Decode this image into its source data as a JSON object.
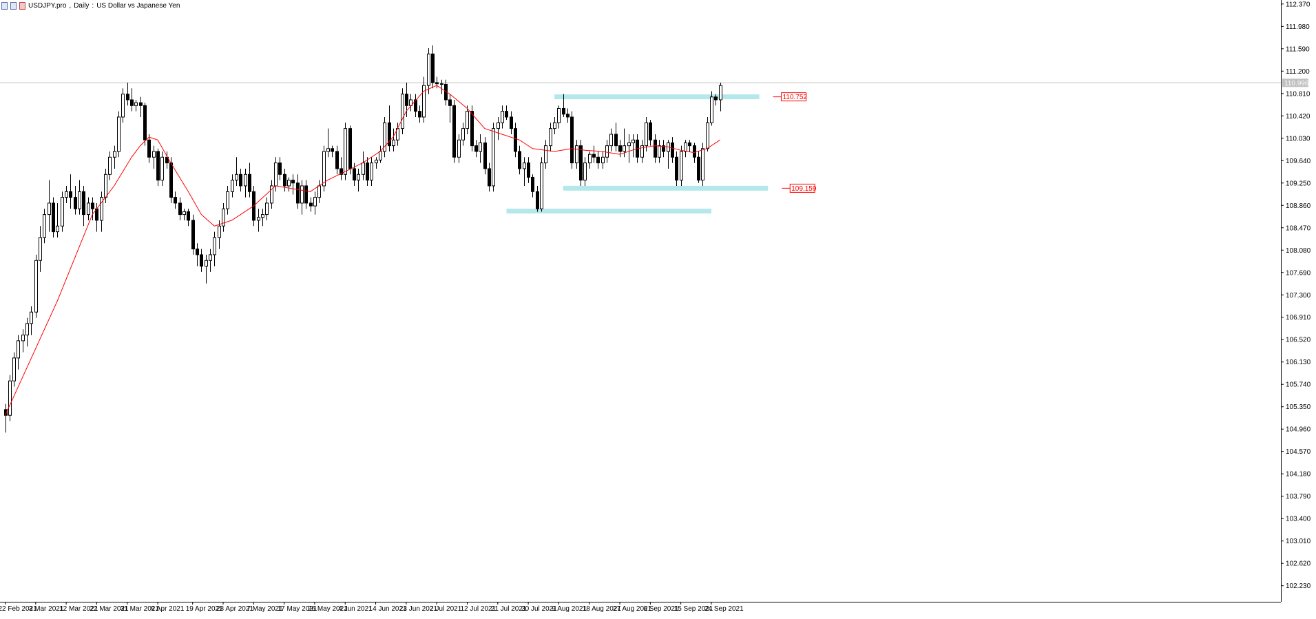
{
  "header": {
    "symbol": "USDJPY.pro",
    "timeframe": "Daily",
    "description": "US Dollar vs Japanese Yen"
  },
  "colors": {
    "background": "#ffffff",
    "axis": "#000000",
    "candle_up_fill": "#ffffff",
    "candle_down_fill": "#000000",
    "ma_line": "#ff0000",
    "zone_fill": "#b4e8ea",
    "price_line": "#c0c0c0",
    "level_label": "#ff0000"
  },
  "chart_data": {
    "type": "candlestick",
    "title": "USDJPY.pro, Daily: US Dollar vs Japanese Yen",
    "ylim": [
      101.95,
      112.44
    ],
    "y_ticks": [
      "112.370",
      "111.980",
      "111.590",
      "111.200",
      "110.810",
      "110.420",
      "110.030",
      "109.640",
      "109.250",
      "108.860",
      "108.470",
      "108.080",
      "107.690",
      "107.300",
      "106.910",
      "106.520",
      "106.130",
      "105.740",
      "105.350",
      "104.960",
      "104.570",
      "104.180",
      "103.790",
      "103.400",
      "103.010",
      "102.620",
      "102.230"
    ],
    "x_ticks": [
      {
        "i": 0,
        "label": "22 Feb 2021"
      },
      {
        "i": 7,
        "label": "3 Mar 2021"
      },
      {
        "i": 14,
        "label": "12 Mar 2021"
      },
      {
        "i": 21,
        "label": "22 Mar 2021"
      },
      {
        "i": 28,
        "label": "31 Mar 2021"
      },
      {
        "i": 35,
        "label": "9 Apr 2021"
      },
      {
        "i": 43,
        "label": "19 Apr 2021"
      },
      {
        "i": 50,
        "label": "28 Apr 2021"
      },
      {
        "i": 57,
        "label": "7 May 2021"
      },
      {
        "i": 64,
        "label": "17 May 2021"
      },
      {
        "i": 71,
        "label": "26 May 2021"
      },
      {
        "i": 78,
        "label": "4 Jun 2021"
      },
      {
        "i": 85,
        "label": "14 Jun 2021"
      },
      {
        "i": 92,
        "label": "23 Jun 2021"
      },
      {
        "i": 99,
        "label": "2 Jul 2021"
      },
      {
        "i": 106,
        "label": "12 Jul 2021"
      },
      {
        "i": 113,
        "label": "21 Jul 2021"
      },
      {
        "i": 120,
        "label": "30 Jul 2021"
      },
      {
        "i": 127,
        "label": "9 Aug 2021"
      },
      {
        "i": 134,
        "label": "18 Aug 2021"
      },
      {
        "i": 141,
        "label": "27 Aug 2021"
      },
      {
        "i": 148,
        "label": "6 Sep 2021"
      },
      {
        "i": 155,
        "label": "15 Sep 2021"
      },
      {
        "i": 162,
        "label": "24 Sep 2021"
      }
    ],
    "current_price_label": "110.996",
    "current_price": 110.996,
    "levels": [
      {
        "label": "110.752",
        "value": 110.752,
        "i_start": 126,
        "i_end": 173
      },
      {
        "label": "109.159",
        "value": 109.159,
        "i_start": 128,
        "i_end": 175
      },
      {
        "label": "",
        "value": 108.76,
        "i_start": 115,
        "i_end": 162
      }
    ],
    "ohlc": [
      [
        105.3,
        105.4,
        104.9,
        105.2
      ],
      [
        105.2,
        105.9,
        105.1,
        105.8
      ],
      [
        105.8,
        106.3,
        105.7,
        106.2
      ],
      [
        106.2,
        106.6,
        106.0,
        106.5
      ],
      [
        106.5,
        106.7,
        106.3,
        106.6
      ],
      [
        106.6,
        106.9,
        106.4,
        106.8
      ],
      [
        106.8,
        107.1,
        106.6,
        107.0
      ],
      [
        107.0,
        108.0,
        106.9,
        107.9
      ],
      [
        107.9,
        108.5,
        107.7,
        108.3
      ],
      [
        108.3,
        108.8,
        108.2,
        108.7
      ],
      [
        108.7,
        109.3,
        108.4,
        108.9
      ],
      [
        108.9,
        109.0,
        108.3,
        108.4
      ],
      [
        108.4,
        108.9,
        108.3,
        108.5
      ],
      [
        108.5,
        109.1,
        108.4,
        109.0
      ],
      [
        109.0,
        109.2,
        108.9,
        109.1
      ],
      [
        109.1,
        109.4,
        108.8,
        109.0
      ],
      [
        109.0,
        109.2,
        108.7,
        108.8
      ],
      [
        108.8,
        109.3,
        108.7,
        109.1
      ],
      [
        109.1,
        109.2,
        108.5,
        108.7
      ],
      [
        108.7,
        109.0,
        108.6,
        108.9
      ],
      [
        108.9,
        109.0,
        108.6,
        108.8
      ],
      [
        108.8,
        108.9,
        108.4,
        108.6
      ],
      [
        108.6,
        109.1,
        108.4,
        109.0
      ],
      [
        109.0,
        109.5,
        108.9,
        109.4
      ],
      [
        109.4,
        109.8,
        109.3,
        109.7
      ],
      [
        109.7,
        109.9,
        109.5,
        109.8
      ],
      [
        109.8,
        110.5,
        109.7,
        110.4
      ],
      [
        110.4,
        110.9,
        110.3,
        110.8
      ],
      [
        110.8,
        111.0,
        110.6,
        110.7
      ],
      [
        110.7,
        110.9,
        110.5,
        110.6
      ],
      [
        110.6,
        110.7,
        110.5,
        110.65
      ],
      [
        110.65,
        110.75,
        110.4,
        110.6
      ],
      [
        110.6,
        110.65,
        109.9,
        110.0
      ],
      [
        110.0,
        110.1,
        109.6,
        109.7
      ],
      [
        109.7,
        109.9,
        109.5,
        109.8
      ],
      [
        109.8,
        109.85,
        109.2,
        109.3
      ],
      [
        109.3,
        109.8,
        109.2,
        109.7
      ],
      [
        109.7,
        109.8,
        109.5,
        109.6
      ],
      [
        109.6,
        109.7,
        108.9,
        109.0
      ],
      [
        109.0,
        109.1,
        108.8,
        108.9
      ],
      [
        108.9,
        109.0,
        108.6,
        108.7
      ],
      [
        108.7,
        108.8,
        108.6,
        108.75
      ],
      [
        108.75,
        108.8,
        108.5,
        108.6
      ],
      [
        108.6,
        108.7,
        108.0,
        108.1
      ],
      [
        108.1,
        108.2,
        107.8,
        108.0
      ],
      [
        108.0,
        108.1,
        107.7,
        107.8
      ],
      [
        107.8,
        108.0,
        107.5,
        107.9
      ],
      [
        107.9,
        108.1,
        107.7,
        108.0
      ],
      [
        108.0,
        108.4,
        107.8,
        108.3
      ],
      [
        108.3,
        108.6,
        108.1,
        108.5
      ],
      [
        108.5,
        108.9,
        108.4,
        108.8
      ],
      [
        108.8,
        109.2,
        108.7,
        109.1
      ],
      [
        109.1,
        109.4,
        109.0,
        109.3
      ],
      [
        109.3,
        109.7,
        109.2,
        109.4
      ],
      [
        109.4,
        109.5,
        109.1,
        109.2
      ],
      [
        109.2,
        109.5,
        109.0,
        109.4
      ],
      [
        109.4,
        109.6,
        109.0,
        109.1
      ],
      [
        109.1,
        109.2,
        108.5,
        108.6
      ],
      [
        108.6,
        108.8,
        108.4,
        108.65
      ],
      [
        108.65,
        108.8,
        108.5,
        108.7
      ],
      [
        108.7,
        109.0,
        108.6,
        108.9
      ],
      [
        108.9,
        109.3,
        108.8,
        109.2
      ],
      [
        109.2,
        109.7,
        109.1,
        109.6
      ],
      [
        109.6,
        109.7,
        109.3,
        109.4
      ],
      [
        109.4,
        109.5,
        109.1,
        109.2
      ],
      [
        109.2,
        109.35,
        109.1,
        109.3
      ],
      [
        109.3,
        109.4,
        109.05,
        109.25
      ],
      [
        109.25,
        109.4,
        108.8,
        108.9
      ],
      [
        108.9,
        109.3,
        108.7,
        109.2
      ],
      [
        109.2,
        109.3,
        108.8,
        108.9
      ],
      [
        108.9,
        109.0,
        108.75,
        108.85
      ],
      [
        108.85,
        109.1,
        108.7,
        109.0
      ],
      [
        109.0,
        109.3,
        108.9,
        109.2
      ],
      [
        109.2,
        109.9,
        109.1,
        109.8
      ],
      [
        109.8,
        110.2,
        109.7,
        109.85
      ],
      [
        109.85,
        109.9,
        109.7,
        109.8
      ],
      [
        109.8,
        109.9,
        109.4,
        109.5
      ],
      [
        109.5,
        109.7,
        109.3,
        109.4
      ],
      [
        109.4,
        110.3,
        109.3,
        110.2
      ],
      [
        110.2,
        110.25,
        109.4,
        109.5
      ],
      [
        109.5,
        109.6,
        109.2,
        109.3
      ],
      [
        109.3,
        109.5,
        109.1,
        109.4
      ],
      [
        109.4,
        109.8,
        109.3,
        109.6
      ],
      [
        109.6,
        109.7,
        109.2,
        109.3
      ],
      [
        109.3,
        109.7,
        109.2,
        109.6
      ],
      [
        109.6,
        109.7,
        109.5,
        109.65
      ],
      [
        109.65,
        109.9,
        109.6,
        109.8
      ],
      [
        109.8,
        110.4,
        109.7,
        110.3
      ],
      [
        110.3,
        110.6,
        109.8,
        109.9
      ],
      [
        109.9,
        110.2,
        109.8,
        110.0
      ],
      [
        110.0,
        110.3,
        109.9,
        110.2
      ],
      [
        110.2,
        110.9,
        110.1,
        110.8
      ],
      [
        110.8,
        111.0,
        110.4,
        110.6
      ],
      [
        110.6,
        110.8,
        110.5,
        110.7
      ],
      [
        110.7,
        110.8,
        110.4,
        110.5
      ],
      [
        110.5,
        110.6,
        110.3,
        110.4
      ],
      [
        110.4,
        111.1,
        110.3,
        110.95
      ],
      [
        110.95,
        111.6,
        110.8,
        111.5
      ],
      [
        111.5,
        111.65,
        110.9,
        111.0
      ],
      [
        111.0,
        111.1,
        110.9,
        110.98
      ],
      [
        110.98,
        111.05,
        110.8,
        110.97
      ],
      [
        110.97,
        111.05,
        110.6,
        110.7
      ],
      [
        110.7,
        110.8,
        110.3,
        110.6
      ],
      [
        110.6,
        110.7,
        109.6,
        109.7
      ],
      [
        109.7,
        110.1,
        109.6,
        110.0
      ],
      [
        110.0,
        110.3,
        109.9,
        110.2
      ],
      [
        110.2,
        110.6,
        110.1,
        110.5
      ],
      [
        110.5,
        110.6,
        109.8,
        109.9
      ],
      [
        109.9,
        110.0,
        109.7,
        109.8
      ],
      [
        109.8,
        110.1,
        109.6,
        109.95
      ],
      [
        109.95,
        110.05,
        109.4,
        109.5
      ],
      [
        109.5,
        109.6,
        109.1,
        109.2
      ],
      [
        109.2,
        110.3,
        109.1,
        110.2
      ],
      [
        110.2,
        110.4,
        110.0,
        110.3
      ],
      [
        110.3,
        110.6,
        110.2,
        110.5
      ],
      [
        110.5,
        110.6,
        110.35,
        110.4
      ],
      [
        110.4,
        110.5,
        110.1,
        110.2
      ],
      [
        110.2,
        110.3,
        109.7,
        109.8
      ],
      [
        109.8,
        109.9,
        109.4,
        109.5
      ],
      [
        109.5,
        109.7,
        109.2,
        109.6
      ],
      [
        109.6,
        109.7,
        109.25,
        109.35
      ],
      [
        109.35,
        109.4,
        109.0,
        109.1
      ],
      [
        109.1,
        109.2,
        108.75,
        108.8
      ],
      [
        108.8,
        109.7,
        108.75,
        109.6
      ],
      [
        109.6,
        110.0,
        109.5,
        109.9
      ],
      [
        109.9,
        110.3,
        109.8,
        110.2
      ],
      [
        110.2,
        110.4,
        110.1,
        110.3
      ],
      [
        110.3,
        110.6,
        110.2,
        110.55
      ],
      [
        110.55,
        110.8,
        110.4,
        110.45
      ],
      [
        110.45,
        110.55,
        110.3,
        110.4
      ],
      [
        110.4,
        110.5,
        109.5,
        109.6
      ],
      [
        109.6,
        110.0,
        109.5,
        109.9
      ],
      [
        109.9,
        110.0,
        109.2,
        109.3
      ],
      [
        109.3,
        109.7,
        109.2,
        109.6
      ],
      [
        109.6,
        109.8,
        109.5,
        109.75
      ],
      [
        109.75,
        109.9,
        109.6,
        109.7
      ],
      [
        109.7,
        109.8,
        109.5,
        109.6
      ],
      [
        109.6,
        109.8,
        109.5,
        109.7
      ],
      [
        109.7,
        110.0,
        109.6,
        109.9
      ],
      [
        109.9,
        110.2,
        109.8,
        110.1
      ],
      [
        110.1,
        110.3,
        109.8,
        109.9
      ],
      [
        109.9,
        110.0,
        109.7,
        109.8
      ],
      [
        109.8,
        110.2,
        109.7,
        109.9
      ],
      [
        109.9,
        110.1,
        109.6,
        109.95
      ],
      [
        109.95,
        110.1,
        109.7,
        110.0
      ],
      [
        110.0,
        110.1,
        109.6,
        109.7
      ],
      [
        109.7,
        110.0,
        109.6,
        109.9
      ],
      [
        109.9,
        110.4,
        109.8,
        110.3
      ],
      [
        110.3,
        110.35,
        109.9,
        110.0
      ],
      [
        110.0,
        110.1,
        109.6,
        109.7
      ],
      [
        109.7,
        110.0,
        109.6,
        109.9
      ],
      [
        109.9,
        110.0,
        109.7,
        109.8
      ],
      [
        109.8,
        110.0,
        109.5,
        109.95
      ],
      [
        109.95,
        110.05,
        109.6,
        109.7
      ],
      [
        109.7,
        109.8,
        109.2,
        109.3
      ],
      [
        109.3,
        109.9,
        109.2,
        109.8
      ],
      [
        109.8,
        110.0,
        109.7,
        109.95
      ],
      [
        109.95,
        110.0,
        109.8,
        109.9
      ],
      [
        109.9,
        109.95,
        109.6,
        109.7
      ],
      [
        109.7,
        109.8,
        109.25,
        109.3
      ],
      [
        109.3,
        109.95,
        109.2,
        109.85
      ],
      [
        109.85,
        110.4,
        109.8,
        110.3
      ],
      [
        110.3,
        110.85,
        110.25,
        110.75
      ],
      [
        110.75,
        110.8,
        110.6,
        110.7
      ],
      [
        110.7,
        111.0,
        110.5,
        110.95
      ]
    ],
    "ma": [
      [
        0,
        105.2
      ],
      [
        12,
        107.2
      ],
      [
        20,
        108.7
      ],
      [
        25,
        109.2
      ],
      [
        29,
        109.7
      ],
      [
        31,
        109.9
      ],
      [
        33,
        110.05
      ],
      [
        35,
        110.0
      ],
      [
        38,
        109.6
      ],
      [
        42,
        109.1
      ],
      [
        45,
        108.7
      ],
      [
        48,
        108.5
      ],
      [
        52,
        108.6
      ],
      [
        57,
        108.85
      ],
      [
        62,
        109.2
      ],
      [
        66,
        109.15
      ],
      [
        70,
        109.1
      ],
      [
        74,
        109.3
      ],
      [
        78,
        109.45
      ],
      [
        82,
        109.6
      ],
      [
        86,
        109.8
      ],
      [
        89,
        110.05
      ],
      [
        92,
        110.5
      ],
      [
        96,
        110.85
      ],
      [
        99,
        110.95
      ],
      [
        102,
        110.8
      ],
      [
        106,
        110.55
      ],
      [
        110,
        110.2
      ],
      [
        114,
        110.1
      ],
      [
        118,
        110.0
      ],
      [
        121,
        109.85
      ],
      [
        126,
        109.8
      ],
      [
        130,
        109.85
      ],
      [
        133,
        109.82
      ],
      [
        137,
        109.8
      ],
      [
        141,
        109.75
      ],
      [
        145,
        109.85
      ],
      [
        149,
        109.9
      ],
      [
        152,
        109.88
      ],
      [
        155,
        109.82
      ],
      [
        158,
        109.78
      ],
      [
        161,
        109.85
      ],
      [
        164,
        110.0
      ]
    ]
  }
}
